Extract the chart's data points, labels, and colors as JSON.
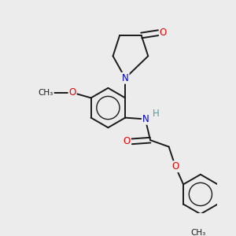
{
  "background_color": "#ececec",
  "bond_color": "#1a1a1a",
  "atom_colors": {
    "O": "#ee0000",
    "N": "#0000cc",
    "H": "#559999",
    "C": "#1a1a1a"
  },
  "figsize": [
    3.0,
    3.0
  ],
  "dpi": 100,
  "xlim": [
    0.0,
    3.0
  ],
  "ylim": [
    0.0,
    3.2
  ]
}
